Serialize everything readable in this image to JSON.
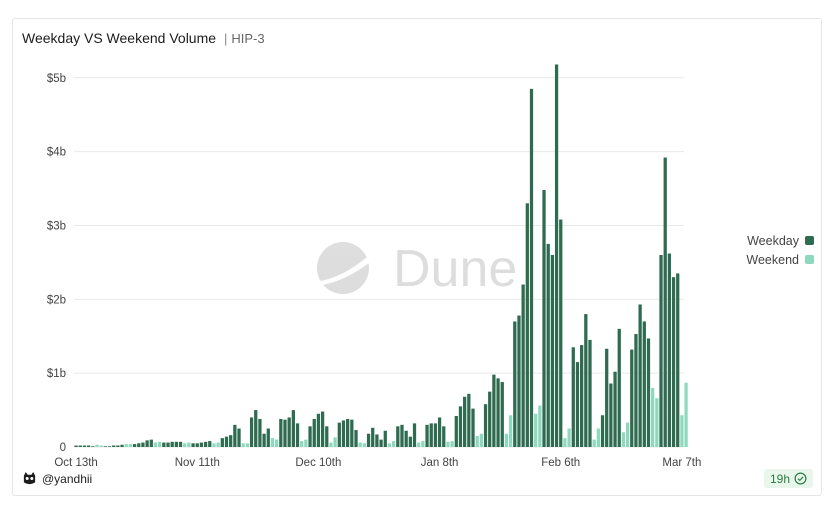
{
  "header": {
    "title": "Weekday VS Weekend Volume",
    "separator": "|",
    "subtitle": "HIP-3"
  },
  "legend": [
    {
      "label": "Weekday",
      "color": "#2e6b50"
    },
    {
      "label": "Weekend",
      "color": "#8ed9bd"
    }
  ],
  "watermark": "Dune",
  "author": {
    "handle": "@yandhii"
  },
  "badge": {
    "age": "19h",
    "icon": "check-circle-icon"
  },
  "colors": {
    "weekday": "#2e6b50",
    "weekend": "#8ed9bd",
    "grid": "#e9e9e9",
    "axis_text": "#444444"
  },
  "chart_data": {
    "type": "bar",
    "title": "Weekday VS Weekend Volume",
    "xlabel": "",
    "ylabel": "",
    "ylim": [
      0,
      5.2
    ],
    "unit": "billions USD",
    "y_ticks": [
      {
        "value": 0,
        "label": "0"
      },
      {
        "value": 1,
        "label": "$1b"
      },
      {
        "value": 2,
        "label": "$2b"
      },
      {
        "value": 3,
        "label": "$3b"
      },
      {
        "value": 4,
        "label": "$4b"
      },
      {
        "value": 5,
        "label": "$5b"
      }
    ],
    "x_ticks": [
      {
        "day": 0,
        "label": "Oct 13th"
      },
      {
        "day": 29,
        "label": "Nov 11th"
      },
      {
        "day": 58,
        "label": "Dec 10th"
      },
      {
        "day": 87,
        "label": "Jan 8th"
      },
      {
        "day": 116,
        "label": "Feb 6th"
      },
      {
        "day": 145,
        "label": "Mar 7th"
      }
    ],
    "start_date": "Oct 13th",
    "series": [
      {
        "name": "Weekday",
        "values": [
          0.02,
          0.02,
          0.02,
          0.02,
          0.01,
          0,
          0,
          0.01,
          0.01,
          0.02,
          0.02,
          0.03,
          0,
          0,
          0.04,
          0.05,
          0.06,
          0.09,
          0.1,
          0,
          0,
          0.06,
          0.06,
          0.07,
          0.07,
          0.07,
          0,
          0,
          0.05,
          0.05,
          0.06,
          0.07,
          0.08,
          0,
          0,
          0.12,
          0.14,
          0.16,
          0.3,
          0.25,
          0,
          0,
          0.4,
          0.5,
          0.38,
          0.18,
          0.25,
          0,
          0,
          0.38,
          0.37,
          0.4,
          0.5,
          0.32,
          0,
          0,
          0.28,
          0.38,
          0.45,
          0.48,
          0.28,
          0,
          0,
          0.33,
          0.36,
          0.38,
          0.37,
          0.23,
          0,
          0,
          0.18,
          0.26,
          0.17,
          0.1,
          0.22,
          0,
          0,
          0.28,
          0.3,
          0.22,
          0.14,
          0.32,
          0,
          0,
          0.3,
          0.32,
          0.32,
          0.4,
          0.28,
          0,
          0,
          0.42,
          0.55,
          0.68,
          0.72,
          0.52,
          0,
          0,
          0.58,
          0.75,
          0.98,
          0.93,
          0.88,
          0,
          0,
          1.7,
          1.78,
          2.2,
          3.3,
          4.85,
          0,
          0,
          3.48,
          2.75,
          2.6,
          5.18,
          3.08,
          0,
          0,
          1.35,
          1.15,
          1.38,
          1.8,
          1.45,
          0,
          0,
          0.43,
          1.33,
          0.86,
          1.02,
          1.6,
          0,
          0,
          1.32,
          1.53,
          1.93,
          1.7,
          1.47,
          0,
          0,
          2.6,
          3.92,
          2.62,
          2.3,
          2.35,
          0
        ]
      },
      {
        "name": "Weekend",
        "values": [
          0,
          0,
          0,
          0,
          0,
          0.03,
          0.02,
          0,
          0,
          0,
          0,
          0,
          0.04,
          0.04,
          0,
          0,
          0,
          0,
          0,
          0.06,
          0.07,
          0,
          0,
          0,
          0,
          0,
          0.05,
          0.06,
          0,
          0,
          0,
          0,
          0,
          0.05,
          0.06,
          0,
          0,
          0,
          0,
          0,
          0.05,
          0.05,
          0,
          0,
          0,
          0,
          0,
          0.12,
          0.1,
          0,
          0,
          0,
          0,
          0,
          0.08,
          0.1,
          0,
          0,
          0,
          0,
          0,
          0.06,
          0.13,
          0,
          0,
          0,
          0,
          0,
          0.06,
          0.05,
          0,
          0,
          0,
          0,
          0,
          0.05,
          0.08,
          0,
          0,
          0,
          0,
          0,
          0.06,
          0.08,
          0,
          0,
          0,
          0,
          0,
          0.07,
          0.08,
          0,
          0,
          0,
          0,
          0,
          0.15,
          0.18,
          0,
          0,
          0,
          0,
          0,
          0.18,
          0.43,
          0,
          0,
          0,
          0,
          0,
          0.45,
          0.56,
          0,
          0,
          0,
          0,
          0,
          0.12,
          0.25,
          0,
          0,
          0,
          0,
          0,
          0.1,
          0.25,
          0,
          0,
          0,
          0,
          0,
          0.2,
          0.33,
          0,
          0,
          0,
          0,
          0,
          0.8,
          0.66,
          0,
          0,
          0,
          0,
          0,
          0.43,
          0.87
        ]
      }
    ]
  }
}
